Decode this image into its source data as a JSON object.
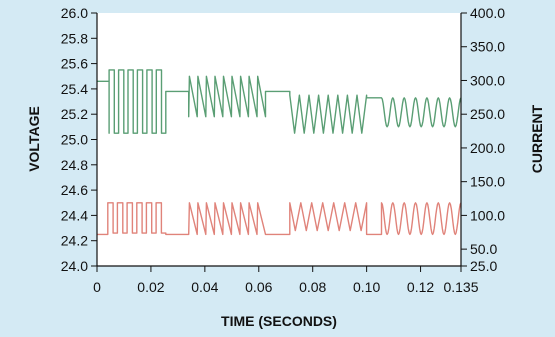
{
  "chart_data": {
    "type": "line",
    "title": "",
    "xlabel": "TIME (SECONDS)",
    "ylabel": "VOLTAGE",
    "y2label": "CURRENT",
    "xlim": [
      0,
      0.135
    ],
    "ylim": [
      24.0,
      26.0
    ],
    "y2lim": [
      25,
      400
    ],
    "grid": false,
    "legend": "none",
    "x_ticks": [
      0,
      0.02,
      0.04,
      0.06,
      0.08,
      0.1,
      0.12,
      0.135
    ],
    "x_tick_labels": [
      "0",
      "0.02",
      "0.04",
      "0.06",
      "0.08",
      "0.10",
      "0.12",
      "0.135"
    ],
    "y_ticks": [
      24.0,
      24.2,
      24.4,
      24.6,
      24.8,
      25.0,
      25.2,
      25.4,
      25.6,
      25.8,
      26.0
    ],
    "y_tick_labels": [
      "24.0",
      "24.2",
      "24.4",
      "24.6",
      "24.8",
      "25.0",
      "25.2",
      "25.4",
      "25.6",
      "25.8",
      "26.0"
    ],
    "y2_ticks": [
      25,
      50,
      100,
      150,
      200,
      250,
      300,
      350,
      400
    ],
    "y2_tick_labels": [
      "25.0",
      "50.0",
      "100.0",
      "150.0",
      "200.0",
      "250.0",
      "300.0",
      "350.0",
      "400.0"
    ],
    "series": [
      {
        "axis": "left",
        "color": "#5a9e74",
        "segments": [
          {
            "shape": "square",
            "x0": 0.0,
            "x1": 0.0045,
            "y_low": 25.46,
            "y_high": 25.46,
            "cycles": 0
          },
          {
            "shape": "square",
            "x0": 0.0045,
            "x1": 0.0255,
            "y_low": 25.05,
            "y_high": 25.55,
            "cycles": 6
          },
          {
            "shape": "flat",
            "x0": 0.0255,
            "x1": 0.034,
            "y_low": 25.38,
            "y_high": 25.38,
            "cycles": 0
          },
          {
            "shape": "saw",
            "x0": 0.034,
            "x1": 0.0625,
            "y_low": 25.18,
            "y_high": 25.5,
            "cycles": 9
          },
          {
            "shape": "flat",
            "x0": 0.0625,
            "x1": 0.0715,
            "y_low": 25.38,
            "y_high": 25.38,
            "cycles": 0
          },
          {
            "shape": "tri",
            "x0": 0.0715,
            "x1": 0.1,
            "y_low": 25.05,
            "y_high": 25.35,
            "cycles": 8
          },
          {
            "shape": "flat",
            "x0": 0.1,
            "x1": 0.1055,
            "y_low": 25.33,
            "y_high": 25.33,
            "cycles": 0
          },
          {
            "shape": "sine",
            "x0": 0.1055,
            "x1": 0.135,
            "y_low": 25.1,
            "y_high": 25.33,
            "cycles": 7
          }
        ]
      },
      {
        "axis": "left",
        "color": "#e0837a",
        "segments": [
          {
            "shape": "flat",
            "x0": 0.0,
            "x1": 0.004,
            "y_low": 24.25,
            "y_high": 24.25,
            "cycles": 0
          },
          {
            "shape": "square",
            "x0": 0.004,
            "x1": 0.0255,
            "y_low": 24.26,
            "y_high": 24.5,
            "cycles": 6
          },
          {
            "shape": "flat",
            "x0": 0.0255,
            "x1": 0.034,
            "y_low": 24.25,
            "y_high": 24.25,
            "cycles": 0
          },
          {
            "shape": "saw",
            "x0": 0.034,
            "x1": 0.0625,
            "y_low": 24.25,
            "y_high": 24.5,
            "cycles": 9
          },
          {
            "shape": "flat",
            "x0": 0.0625,
            "x1": 0.0715,
            "y_low": 24.25,
            "y_high": 24.25,
            "cycles": 0
          },
          {
            "shape": "tri",
            "x0": 0.0715,
            "x1": 0.1,
            "y_low": 24.28,
            "y_high": 24.5,
            "cycles": 7
          },
          {
            "shape": "flat",
            "x0": 0.1,
            "x1": 0.1055,
            "y_low": 24.25,
            "y_high": 24.25,
            "cycles": 0
          },
          {
            "shape": "sine",
            "x0": 0.1055,
            "x1": 0.135,
            "y_low": 24.25,
            "y_high": 24.5,
            "cycles": 7
          }
        ]
      }
    ]
  },
  "colors": {
    "background": "#d4eaf4",
    "plot_area": "#ffffff",
    "axes": "#111111"
  }
}
